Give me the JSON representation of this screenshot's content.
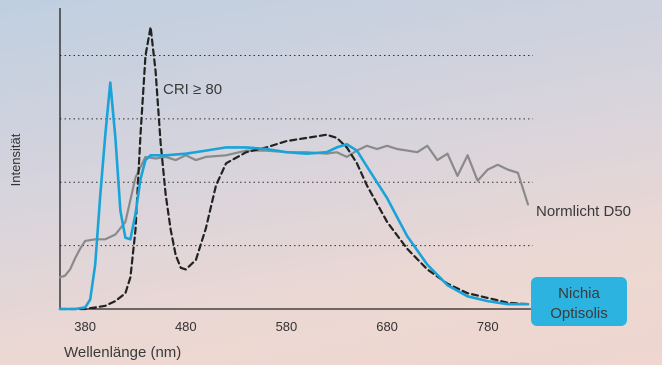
{
  "chart_data": {
    "type": "line",
    "title": "",
    "xlabel": "Wellenlänge (nm)",
    "ylabel": "Intensität",
    "xlim": [
      355,
      825
    ],
    "ylim": [
      0,
      1.9
    ],
    "x_ticks": [
      380,
      480,
      580,
      680,
      780
    ],
    "y_gridlines": [
      0.4,
      0.8,
      1.2,
      1.6
    ],
    "grid": "horizontal dotted",
    "colors": {
      "nichia": "#1aa3d9",
      "d50": "#8a8a8a",
      "cri": "#222222",
      "badge": "#2db3e0"
    },
    "series": [
      {
        "name": "Nichia Optisolis",
        "style": "solid",
        "x": [
          355,
          370,
          380,
          385,
          390,
          395,
          400,
          405,
          410,
          415,
          420,
          425,
          430,
          435,
          440,
          445,
          450,
          460,
          480,
          500,
          520,
          540,
          560,
          580,
          600,
          620,
          630,
          640,
          650,
          660,
          670,
          680,
          690,
          700,
          720,
          740,
          760,
          780,
          800,
          820
        ],
        "y": [
          0.0,
          0.0,
          0.01,
          0.06,
          0.28,
          0.72,
          1.1,
          1.43,
          1.08,
          0.62,
          0.45,
          0.44,
          0.6,
          0.82,
          0.94,
          0.97,
          0.97,
          0.97,
          0.98,
          1.0,
          1.02,
          1.02,
          1.01,
          0.99,
          0.98,
          0.99,
          1.02,
          1.04,
          1.0,
          0.9,
          0.8,
          0.7,
          0.58,
          0.46,
          0.28,
          0.15,
          0.08,
          0.05,
          0.03,
          0.03
        ]
      },
      {
        "name": "Normlicht D50",
        "style": "solid",
        "x": [
          355,
          360,
          365,
          370,
          375,
          380,
          390,
          400,
          410,
          420,
          430,
          440,
          450,
          460,
          470,
          480,
          490,
          500,
          520,
          540,
          560,
          580,
          600,
          620,
          630,
          640,
          650,
          660,
          670,
          680,
          690,
          700,
          710,
          720,
          730,
          740,
          750,
          760,
          770,
          780,
          790,
          800,
          810,
          820
        ],
        "y": [
          0.2,
          0.21,
          0.25,
          0.32,
          0.38,
          0.43,
          0.44,
          0.44,
          0.47,
          0.55,
          0.83,
          0.96,
          0.95,
          0.96,
          0.94,
          0.97,
          0.94,
          0.96,
          0.97,
          1.0,
          1.0,
          0.99,
          0.99,
          0.98,
          0.99,
          0.96,
          1.0,
          1.03,
          1.01,
          1.03,
          1.01,
          1.0,
          0.99,
          1.03,
          0.94,
          0.98,
          0.84,
          0.97,
          0.81,
          0.88,
          0.91,
          0.88,
          0.86,
          0.66
        ]
      },
      {
        "name": "CRI ≥ 80",
        "style": "dashed",
        "x": [
          355,
          370,
          380,
          390,
          400,
          410,
          420,
          425,
          430,
          435,
          440,
          445,
          450,
          455,
          460,
          465,
          470,
          475,
          480,
          490,
          500,
          510,
          520,
          540,
          560,
          580,
          600,
          620,
          630,
          640,
          650,
          660,
          680,
          700,
          720,
          740,
          760,
          780,
          800,
          820
        ],
        "y": [
          0.0,
          0.0,
          0.0,
          0.01,
          0.02,
          0.05,
          0.1,
          0.2,
          0.5,
          1.1,
          1.6,
          1.78,
          1.5,
          1.05,
          0.72,
          0.5,
          0.34,
          0.26,
          0.25,
          0.31,
          0.51,
          0.78,
          0.92,
          0.99,
          1.02,
          1.06,
          1.08,
          1.1,
          1.08,
          1.02,
          0.92,
          0.78,
          0.55,
          0.38,
          0.25,
          0.16,
          0.1,
          0.07,
          0.04,
          0.03
        ]
      }
    ],
    "annotations": {
      "cri": "CRI ≥ 80",
      "d50": "Normlicht D50",
      "nichia_line1": "Nichia",
      "nichia_line2": "Optisolis"
    }
  }
}
